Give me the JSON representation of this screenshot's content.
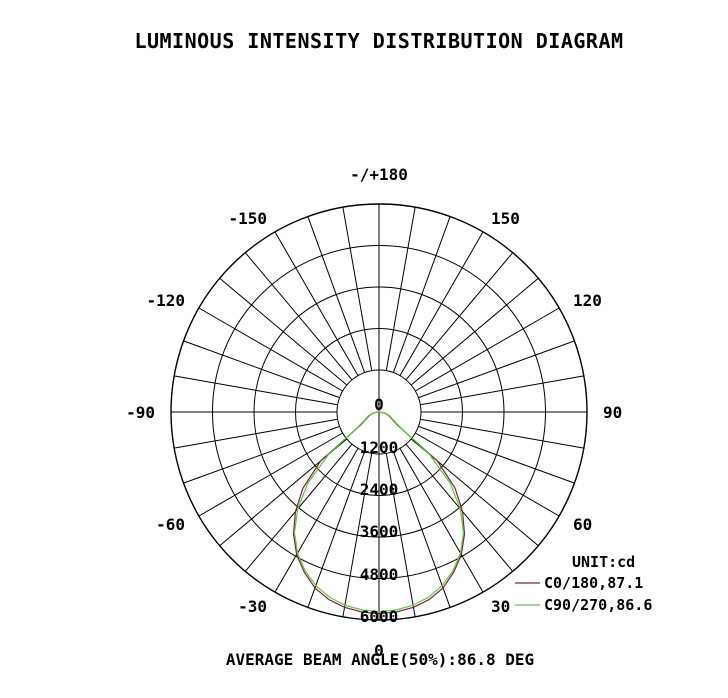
{
  "chart_data": {
    "type": "polar",
    "title": "LUMINOUS INTENSITY DISTRIBUTION DIAGRAM",
    "unit_label": "UNIT:cd",
    "footer": "AVERAGE BEAM ANGLE(50%):86.8 DEG",
    "radial_ticks": [
      "0",
      "1200",
      "2400",
      "3600",
      "4800",
      "6000"
    ],
    "radial_tick_values": [
      0,
      1200,
      2400,
      3600,
      4800,
      6000
    ],
    "rmax": 6000,
    "angle_labels": [
      {
        "angle": 180,
        "text": "-/+180"
      },
      {
        "angle": -150,
        "text": "-150"
      },
      {
        "angle": 150,
        "text": "150"
      },
      {
        "angle": -120,
        "text": "-120"
      },
      {
        "angle": 120,
        "text": "120"
      },
      {
        "angle": -90,
        "text": "-90"
      },
      {
        "angle": 90,
        "text": "90"
      },
      {
        "angle": -60,
        "text": "-60"
      },
      {
        "angle": 60,
        "text": "60"
      },
      {
        "angle": -30,
        "text": "-30"
      },
      {
        "angle": 30,
        "text": "30"
      },
      {
        "angle": 0,
        "text": "0"
      }
    ],
    "series": [
      {
        "name": "C0/180,87.1",
        "color": "#8B1A3A",
        "angles": [
          -90,
          -80,
          -70,
          -60,
          -55,
          -50,
          -45,
          -40,
          -35,
          -30,
          -25,
          -20,
          -15,
          -10,
          -5,
          0,
          5,
          10,
          15,
          20,
          25,
          30,
          35,
          40,
          45,
          50,
          55,
          60,
          70,
          80,
          90
        ],
        "values": [
          0,
          160,
          300,
          460,
          620,
          2200,
          3100,
          3750,
          4300,
          4750,
          5100,
          5400,
          5600,
          5720,
          5790,
          5820,
          5790,
          5720,
          5600,
          5400,
          5100,
          4750,
          4300,
          3750,
          3100,
          2200,
          620,
          460,
          300,
          160,
          0
        ]
      },
      {
        "name": "C90/270,86.6",
        "color": "#55CC44",
        "angles": [
          -90,
          -80,
          -70,
          -60,
          -55,
          -50,
          -45,
          -40,
          -35,
          -30,
          -25,
          -20,
          -15,
          -10,
          -5,
          0,
          5,
          10,
          15,
          20,
          25,
          30,
          35,
          40,
          45,
          50,
          55,
          60,
          70,
          80,
          90
        ],
        "values": [
          0,
          180,
          330,
          500,
          700,
          1900,
          2900,
          3650,
          4250,
          4700,
          5050,
          5330,
          5530,
          5660,
          5730,
          5760,
          5730,
          5660,
          5530,
          5330,
          5050,
          4700,
          4250,
          3650,
          2900,
          1900,
          700,
          500,
          330,
          180,
          0
        ]
      }
    ]
  }
}
